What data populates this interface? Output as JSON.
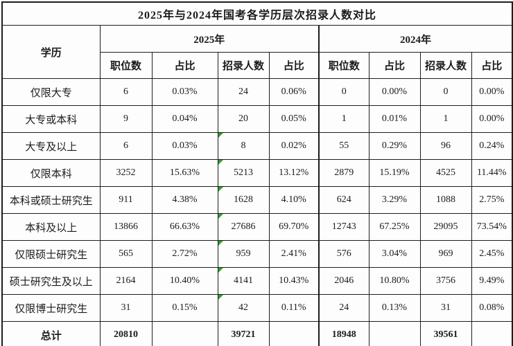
{
  "accent_colors": {
    "border": "#1d1d1d",
    "text": "#1b1b1b",
    "error_indicator_green": "#2fa12f",
    "background": "#ffffff"
  },
  "chart_data": {
    "type": "table",
    "title": "2025年与2024年国考各学历层次招录人数对比",
    "education_header": "学历",
    "column_groups": [
      "2025年",
      "2024年"
    ],
    "sub_columns": [
      "职位数",
      "占比",
      "招录人数",
      "占比"
    ],
    "columns_flat": [
      "学历",
      "2025职位数",
      "2025职位数占比",
      "2025招录人数",
      "2025招录人数占比",
      "2024职位数",
      "2024职位数占比",
      "2024招录人数",
      "2024招录人数占比"
    ],
    "rows": [
      {
        "label": "仅限大专",
        "cells": [
          "6",
          "0.03%",
          "24",
          "0.06%",
          "0",
          "0.00%",
          "0",
          "0.00%"
        ],
        "marker": false,
        "bold": false
      },
      {
        "label": "大专或本科",
        "cells": [
          "9",
          "0.04%",
          "20",
          "0.05%",
          "1",
          "0.01%",
          "1",
          "0.00%"
        ],
        "marker": false,
        "bold": false
      },
      {
        "label": "大专及以上",
        "cells": [
          "6",
          "0.03%",
          "8",
          "0.02%",
          "55",
          "0.29%",
          "96",
          "0.24%"
        ],
        "marker": true,
        "bold": false
      },
      {
        "label": "仅限本科",
        "cells": [
          "3252",
          "15.63%",
          "5213",
          "13.12%",
          "2879",
          "15.19%",
          "4525",
          "11.44%"
        ],
        "marker": true,
        "bold": false
      },
      {
        "label": "本科或硕士研究生",
        "cells": [
          "911",
          "4.38%",
          "1628",
          "4.10%",
          "624",
          "3.29%",
          "1088",
          "2.75%"
        ],
        "marker": true,
        "bold": false
      },
      {
        "label": "本科及以上",
        "cells": [
          "13866",
          "66.63%",
          "27686",
          "69.70%",
          "12743",
          "67.25%",
          "29095",
          "73.54%"
        ],
        "marker": true,
        "bold": false
      },
      {
        "label": "仅限硕士研究生",
        "cells": [
          "565",
          "2.72%",
          "959",
          "2.41%",
          "576",
          "3.04%",
          "969",
          "2.45%"
        ],
        "marker": true,
        "bold": false
      },
      {
        "label": "硕士研究生及以上",
        "cells": [
          "2164",
          "10.40%",
          "4141",
          "10.43%",
          "2046",
          "10.80%",
          "3756",
          "9.49%"
        ],
        "marker": true,
        "bold": false
      },
      {
        "label": "仅限博士研究生",
        "cells": [
          "31",
          "0.15%",
          "42",
          "0.11%",
          "24",
          "0.13%",
          "31",
          "0.08%"
        ],
        "marker": true,
        "bold": false
      },
      {
        "label": "总计",
        "cells": [
          "20810",
          "",
          "39721",
          "",
          "18948",
          "",
          "39561",
          ""
        ],
        "marker": false,
        "bold": true
      }
    ]
  }
}
